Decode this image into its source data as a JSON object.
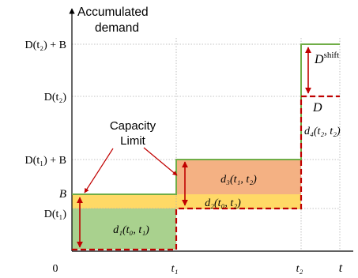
{
  "colors": {
    "region_green": "#a9d18e",
    "region_yellow": "#ffd966",
    "region_orange": "#f4b183",
    "shift_line": "#70ad47",
    "demand_line": "#c00000",
    "arrow": "#c00000",
    "grid": "#b0b0b0"
  },
  "y_axis_title": [
    "Accumulated",
    "demand"
  ],
  "y_ticks": {
    "t2_plus_b": "D(t₂) + B",
    "t2": "D(t₂)",
    "t1_plus_b": "D(t₁) + B",
    "b": "B",
    "t1": "D(t₁)"
  },
  "x_ticks": {
    "origin": "0",
    "t1": "t₁",
    "t2": "t₂",
    "axis": "t"
  },
  "region_labels": {
    "d1": "d₁(t₀, t₁)",
    "d2": "d₂(t₀, t₂)",
    "d3": "d₃(t₁, t₂)",
    "d4": "d₄(t₂, t₂)"
  },
  "curve_labels": {
    "shift_base": "D",
    "shift_sup": "shift",
    "demand": "D"
  },
  "capacity_label": [
    "Capacity",
    "Limit"
  ]
}
